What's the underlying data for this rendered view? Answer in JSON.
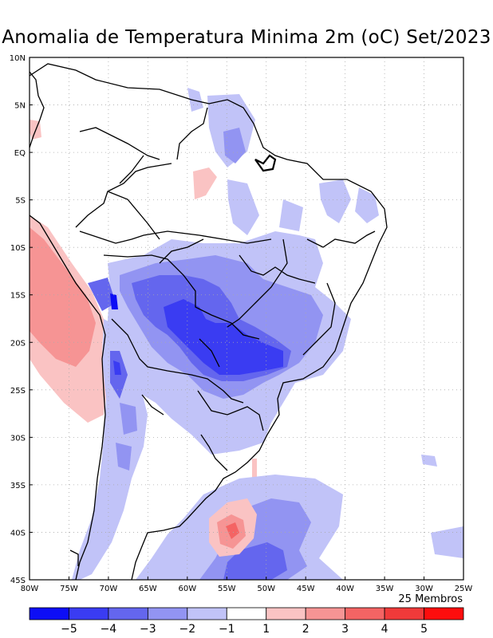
{
  "title": "Anomalia de Temperatura Minima 2m (oC) Set/2023",
  "members_label": "25 Membros",
  "lat_labels": [
    "10N",
    "5N",
    "EQ",
    "5S",
    "10S",
    "15S",
    "20S",
    "25S",
    "30S",
    "35S",
    "40S",
    "45S"
  ],
  "lon_labels": [
    "80W",
    "75W",
    "70W",
    "65W",
    "60W",
    "55W",
    "50W",
    "45W",
    "40W",
    "35W",
    "30W",
    "25W"
  ],
  "colorbar": {
    "colors": [
      "#0d0ef5",
      "#3a3cf2",
      "#6466ee",
      "#9294f2",
      "#c1c3f8",
      "#ffffff",
      "#fac3c3",
      "#f69494",
      "#f46464",
      "#f03a3a",
      "#fd0d0d"
    ],
    "labels": [
      "−5",
      "−4",
      "−3",
      "−2",
      "−1",
      "1",
      "2",
      "3",
      "4",
      "5"
    ]
  },
  "colors": {
    "land_line": "#000000",
    "grid": "#aaaaaa",
    "neg1": "#c1c3f8",
    "neg2": "#9294f2",
    "neg3": "#6466ee",
    "neg4": "#3a3cf2",
    "neg5": "#0d0ef5",
    "pos1": "#fac3c3",
    "pos2": "#f69494",
    "pos3": "#f46464"
  }
}
